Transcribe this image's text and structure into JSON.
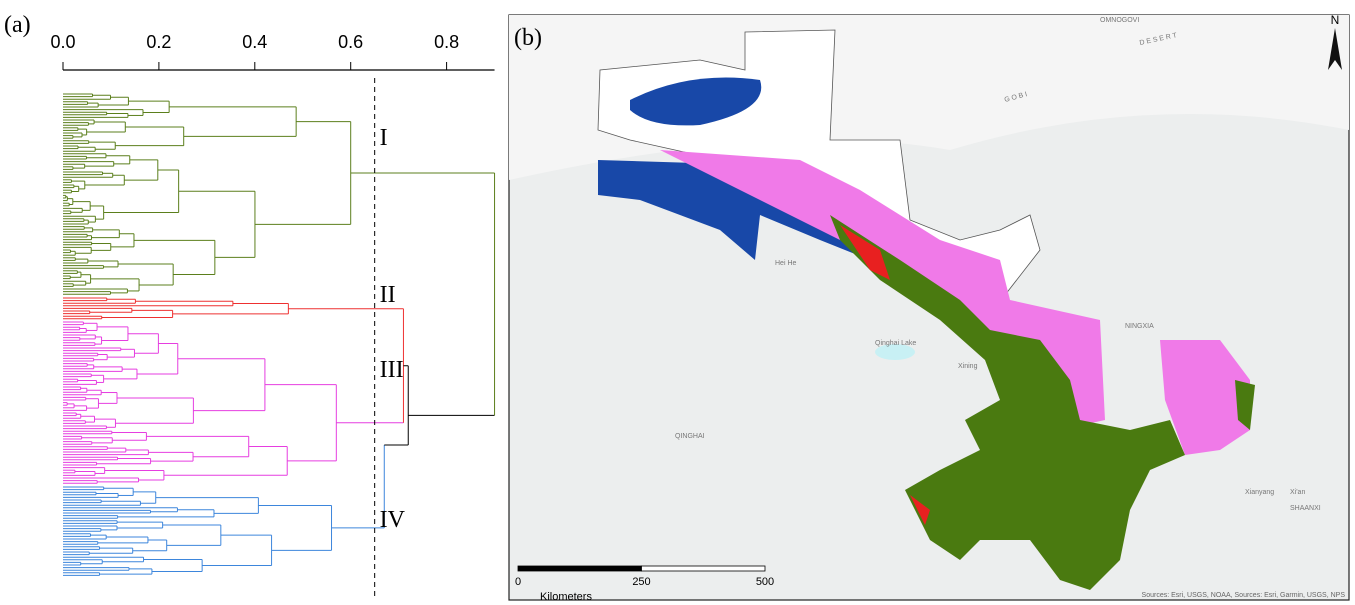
{
  "panel_a": {
    "label": "(a)",
    "xlim": [
      0,
      0.9
    ],
    "xticks": [
      {
        "value": 0,
        "label": "0.0"
      },
      {
        "value": 0.2,
        "label": "0.2"
      },
      {
        "value": 0.4,
        "label": "0.4"
      },
      {
        "value": 0.6,
        "label": "0.6"
      },
      {
        "value": 0.8,
        "label": "0.8"
      }
    ],
    "cut_height": 0.65,
    "clusters": [
      {
        "name": "I",
        "color": "#5b7f1c"
      },
      {
        "name": "II",
        "color": "#ee3030"
      },
      {
        "name": "III",
        "color": "#e63ee0"
      },
      {
        "name": "IV",
        "color": "#3d86dc"
      }
    ]
  },
  "panel_b": {
    "label": "(b)",
    "north": "N",
    "scale_bar": {
      "ticks": [
        0,
        250,
        500
      ],
      "unit": "Kilometers"
    },
    "place_labels": [
      "OMNOGOVI",
      "D E S E R T",
      "G O B I",
      "Hei He",
      "Qinghai Lake",
      "QINGHAI",
      "NINGXIA",
      "Xining",
      "SHAANXI",
      "Xianyang",
      "Xi'an"
    ],
    "attribution": "Sources: Esri, USGS, NOAA, Sources: Esri, Garmin, USGS, NPS"
  }
}
